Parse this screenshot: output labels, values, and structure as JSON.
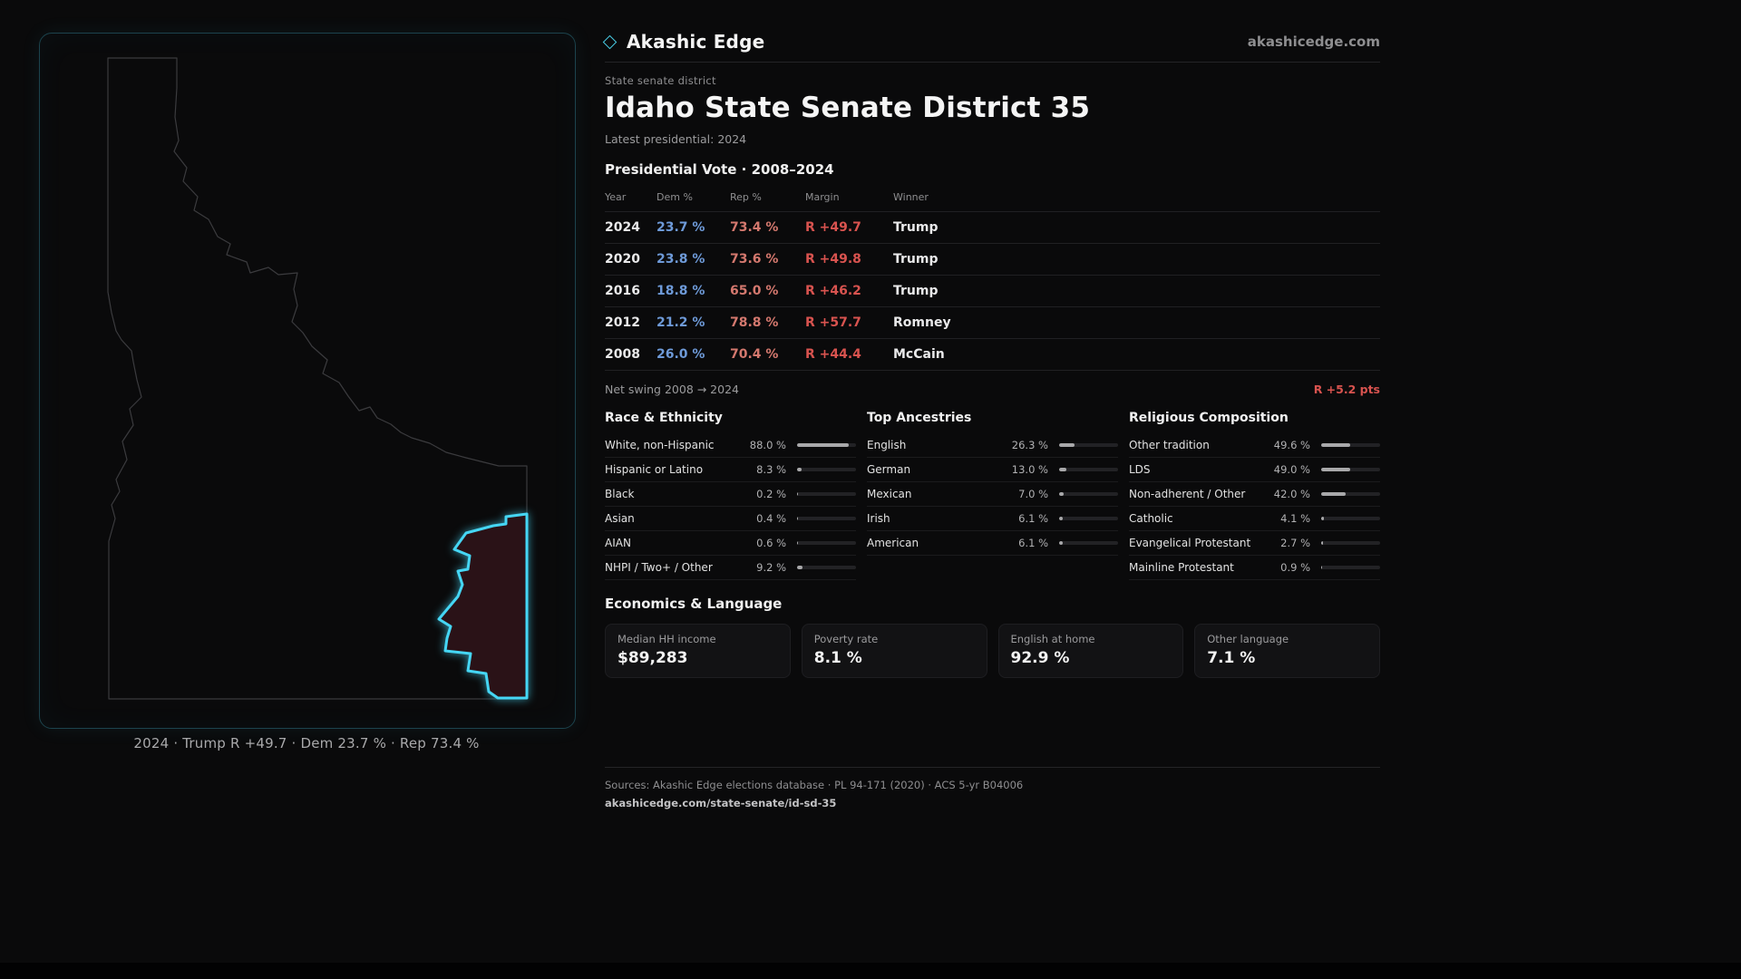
{
  "brand": {
    "name": "Akashic Edge",
    "domain": "akashicedge.com"
  },
  "map": {
    "caption": "2024 · Trump R +49.7 · Dem 23.7 % · Rep 73.4 %"
  },
  "header": {
    "eyebrow": "State senate district",
    "title": "Idaho State Senate District 35",
    "subtitle": "Latest presidential: 2024"
  },
  "presidential": {
    "section_title": "Presidential Vote · 2008–2024",
    "columns": [
      "Year",
      "Dem %",
      "Rep %",
      "Margin",
      "Winner"
    ],
    "rows": [
      {
        "year": "2024",
        "dem": "23.7 %",
        "rep": "73.4 %",
        "margin": "R +49.7",
        "winner": "Trump"
      },
      {
        "year": "2020",
        "dem": "23.8 %",
        "rep": "73.6 %",
        "margin": "R +49.8",
        "winner": "Trump"
      },
      {
        "year": "2016",
        "dem": "18.8 %",
        "rep": "65.0 %",
        "margin": "R +46.2",
        "winner": "Trump"
      },
      {
        "year": "2012",
        "dem": "21.2 %",
        "rep": "78.8 %",
        "margin": "R +57.7",
        "winner": "Romney"
      },
      {
        "year": "2008",
        "dem": "26.0 %",
        "rep": "70.4 %",
        "margin": "R +44.4",
        "winner": "McCain"
      }
    ],
    "net_swing_label": "Net swing 2008 → 2024",
    "net_swing_value": "R +5.2 pts"
  },
  "demographics": {
    "race": {
      "title": "Race & Ethnicity",
      "rows": [
        {
          "label": "White, non-Hispanic",
          "value": "88.0 %",
          "pct": 88.0
        },
        {
          "label": "Hispanic or Latino",
          "value": "8.3 %",
          "pct": 8.3
        },
        {
          "label": "Black",
          "value": "0.2 %",
          "pct": 0.2
        },
        {
          "label": "Asian",
          "value": "0.4 %",
          "pct": 0.4
        },
        {
          "label": "AIAN",
          "value": "0.6 %",
          "pct": 0.6
        },
        {
          "label": "NHPI / Two+ / Other",
          "value": "9.2 %",
          "pct": 9.2
        }
      ]
    },
    "ancestries": {
      "title": "Top Ancestries",
      "rows": [
        {
          "label": "English",
          "value": "26.3 %",
          "pct": 26.3
        },
        {
          "label": "German",
          "value": "13.0 %",
          "pct": 13.0
        },
        {
          "label": "Mexican",
          "value": "7.0 %",
          "pct": 7.0
        },
        {
          "label": "Irish",
          "value": "6.1 %",
          "pct": 6.1
        },
        {
          "label": "American",
          "value": "6.1 %",
          "pct": 6.1
        }
      ]
    },
    "religion": {
      "title": "Religious Composition",
      "rows": [
        {
          "label": "Other tradition",
          "value": "49.6 %",
          "pct": 49.6
        },
        {
          "label": "LDS",
          "value": "49.0 %",
          "pct": 49.0
        },
        {
          "label": "Non-adherent / Other",
          "value": "42.0 %",
          "pct": 42.0
        },
        {
          "label": "Catholic",
          "value": "4.1 %",
          "pct": 4.1
        },
        {
          "label": "Evangelical Protestant",
          "value": "2.7 %",
          "pct": 2.7
        },
        {
          "label": "Mainline Protestant",
          "value": "0.9 %",
          "pct": 0.9
        }
      ]
    }
  },
  "economics": {
    "title": "Economics & Language",
    "cards": [
      {
        "label": "Median HH income",
        "value": "$89,283"
      },
      {
        "label": "Poverty rate",
        "value": "8.1 %"
      },
      {
        "label": "English at home",
        "value": "92.9 %"
      },
      {
        "label": "Other language",
        "value": "7.1 %"
      }
    ]
  },
  "footer": {
    "sources": "Sources: Akashic Edge elections database · PL 94-171 (2020) · ACS 5-yr B04006",
    "permalink": "akashicedge.com/state-senate/id-sd-35"
  },
  "colors": {
    "accent_cyan": "#45d6f4",
    "dem_blue": "#6e9ad8",
    "rep_red": "#d4786e",
    "margin_red": "#d8534f",
    "district_fill": "#2a1217"
  }
}
